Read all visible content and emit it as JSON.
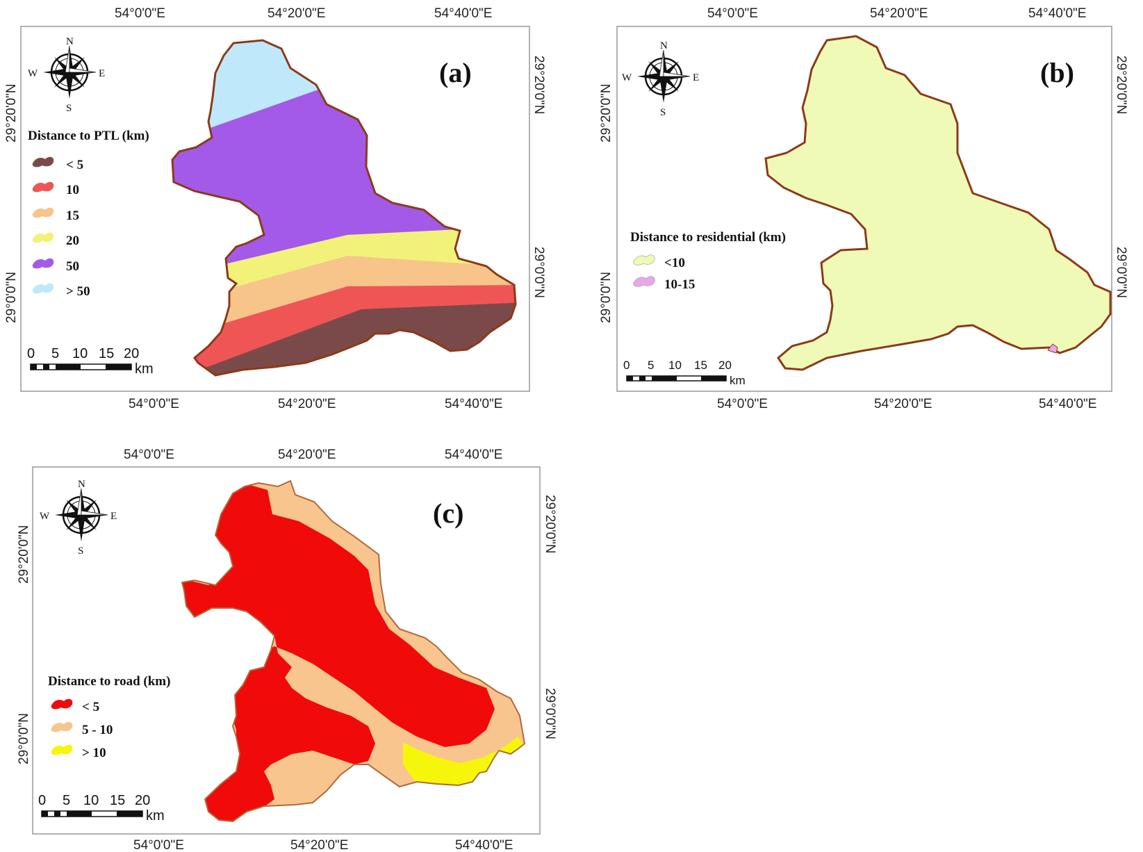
{
  "maps": [
    {
      "id": "a",
      "panel_label": "(a)",
      "legend_title": "Distance to PTL (km)",
      "legend": [
        {
          "label": "< 5",
          "color": "#7a4a4a"
        },
        {
          "label": "10",
          "color": "#f05555"
        },
        {
          "label": "15",
          "color": "#f7c58a"
        },
        {
          "label": "20",
          "color": "#f2f27a"
        },
        {
          "label": "50",
          "color": "#a35ae8"
        },
        {
          "label": "> 50",
          "color": "#bfe9fa"
        }
      ],
      "top_axis": [
        "54°0'0\"E",
        "54°20'0\"E",
        "54°40'0\"E"
      ],
      "bottom_axis": [
        "54°0'0\"E",
        "54°20'0\"E",
        "54°40'0\"E"
      ],
      "left_axis": [
        "29°20'0\"N",
        "29°0'0\"N"
      ],
      "right_axis": [
        "29°20'0\"N",
        "29°0'0\"N"
      ]
    },
    {
      "id": "b",
      "panel_label": "(b)",
      "legend_title": "Distance to residential (km)",
      "legend": [
        {
          "label": "<10",
          "color": "#eefab5"
        },
        {
          "label": "10-15",
          "color": "#e7a8e8"
        }
      ],
      "top_axis": [
        "54°0'0\"E",
        "54°20'0\"E",
        "54°40'0\"E"
      ],
      "bottom_axis": [
        "54°0'0\"E",
        "54°20'0\"E",
        "54°40'0\"E"
      ],
      "left_axis": [
        "29°20'0\"N",
        "29°0'0\"N"
      ],
      "right_axis": [
        "29°20'0\"N",
        "29°0'0\"N"
      ]
    },
    {
      "id": "c",
      "panel_label": "(c)",
      "legend_title": "Distance to road (km)",
      "legend": [
        {
          "label": "< 5",
          "color": "#f00a0a"
        },
        {
          "label": "5 - 10",
          "color": "#f8c58f"
        },
        {
          "label": "> 10",
          "color": "#f6f60a"
        }
      ],
      "top_axis": [
        "54°0'0\"E",
        "54°20'0\"E",
        "54°40'0\"E"
      ],
      "bottom_axis": [
        "54°0'0\"E",
        "54°20'0\"E",
        "54°40'0\"E"
      ],
      "left_axis": [
        "29°20'0\"N",
        "29°0'0\"N"
      ],
      "right_axis": [
        "29°20'0\"N",
        "29°0'0\"N"
      ]
    }
  ],
  "scale_bar": {
    "ticks": [
      "0",
      "5",
      "10",
      "15",
      "20"
    ],
    "unit": "km"
  },
  "compass": {
    "north": "N",
    "south": "S",
    "east": "E",
    "west": "W"
  },
  "boundary_color": "#8b3a1a"
}
